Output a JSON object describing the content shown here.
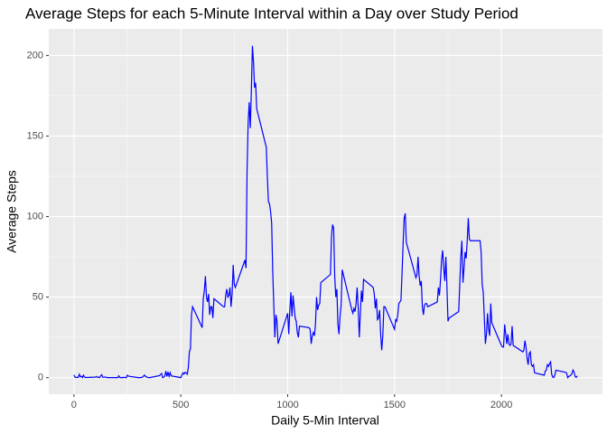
{
  "chart_data": {
    "type": "line",
    "title": "Average Steps for each 5-Minute Interval within a Day over Study Period",
    "x_label": "Daily 5-Min Interval",
    "y_label": "Average Steps",
    "x": [
      0,
      5,
      10,
      15,
      20,
      25,
      30,
      35,
      40,
      45,
      50,
      55,
      100,
      105,
      110,
      115,
      120,
      125,
      130,
      135,
      140,
      145,
      150,
      155,
      200,
      205,
      210,
      215,
      220,
      225,
      230,
      235,
      240,
      245,
      250,
      255,
      300,
      310,
      320,
      330,
      335,
      340,
      345,
      350,
      355,
      400,
      410,
      415,
      420,
      425,
      430,
      435,
      440,
      445,
      450,
      455,
      500,
      505,
      510,
      515,
      520,
      525,
      530,
      535,
      540,
      545,
      550,
      555,
      600,
      605,
      610,
      615,
      620,
      625,
      630,
      635,
      640,
      645,
      650,
      655,
      700,
      705,
      710,
      715,
      720,
      725,
      730,
      735,
      740,
      745,
      750,
      755,
      800,
      805,
      810,
      815,
      820,
      825,
      830,
      835,
      840,
      845,
      850,
      855,
      900,
      905,
      910,
      915,
      920,
      925,
      930,
      935,
      940,
      945,
      950,
      955,
      1000,
      1005,
      1010,
      1015,
      1020,
      1025,
      1030,
      1035,
      1040,
      1045,
      1050,
      1055,
      1100,
      1105,
      1110,
      1115,
      1120,
      1125,
      1130,
      1135,
      1140,
      1145,
      1150,
      1155,
      1200,
      1205,
      1210,
      1215,
      1220,
      1225,
      1230,
      1235,
      1240,
      1245,
      1250,
      1255,
      1300,
      1305,
      1310,
      1315,
      1320,
      1325,
      1330,
      1335,
      1340,
      1345,
      1350,
      1355,
      1400,
      1405,
      1410,
      1415,
      1420,
      1425,
      1430,
      1435,
      1440,
      1445,
      1450,
      1455,
      1500,
      1505,
      1510,
      1515,
      1520,
      1525,
      1530,
      1535,
      1540,
      1545,
      1550,
      1555,
      1600,
      1605,
      1610,
      1615,
      1620,
      1625,
      1630,
      1635,
      1640,
      1645,
      1650,
      1655,
      1700,
      1705,
      1710,
      1715,
      1720,
      1725,
      1730,
      1735,
      1740,
      1745,
      1750,
      1755,
      1800,
      1805,
      1810,
      1815,
      1820,
      1825,
      1830,
      1835,
      1840,
      1845,
      1850,
      1855,
      1900,
      1905,
      1910,
      1915,
      1920,
      1925,
      1930,
      1935,
      1940,
      1945,
      1950,
      1955,
      2000,
      2005,
      2010,
      2015,
      2020,
      2025,
      2030,
      2035,
      2040,
      2045,
      2050,
      2055,
      2100,
      2105,
      2110,
      2115,
      2120,
      2125,
      2130,
      2135,
      2140,
      2145,
      2150,
      2155,
      2200,
      2205,
      2210,
      2215,
      2220,
      2225,
      2230,
      2235,
      2240,
      2245,
      2250,
      2255,
      2300,
      2305,
      2310,
      2315,
      2320,
      2325,
      2330,
      2335,
      2340,
      2345,
      2350,
      2355
    ],
    "series": [
      {
        "color": "#0000ff",
        "values": [
          1.7,
          0.3,
          0.1,
          0.2,
          0.1,
          2.1,
          0.5,
          0.9,
          0,
          1.5,
          0.3,
          0.1,
          0.3,
          0.7,
          0.2,
          0.3,
          0,
          1.1,
          1.8,
          0.2,
          0.2,
          0.4,
          0.3,
          0,
          0,
          0,
          1.1,
          0,
          0,
          0.1,
          0,
          0.2,
          0,
          0,
          1.5,
          0.9,
          0,
          0,
          0.2,
          1.6,
          0.6,
          0.5,
          0.1,
          0,
          0,
          1.2,
          2.6,
          0,
          0.3,
          1.0,
          4.1,
          0.7,
          3.5,
          0.8,
          3.1,
          1.1,
          0,
          1.6,
          3.0,
          2.2,
          3.3,
          3.0,
          2.1,
          6.1,
          16,
          18,
          39,
          44,
          31,
          49,
          54,
          63,
          50,
          47,
          52,
          39,
          44,
          44,
          37,
          49,
          44,
          44,
          51,
          55,
          50,
          51,
          56,
          44,
          52,
          70,
          58,
          56,
          73,
          68,
          129,
          158,
          171,
          155,
          178,
          206,
          196,
          180,
          183,
          167,
          143,
          124,
          109,
          108,
          103,
          96,
          66,
          45,
          25,
          39,
          35,
          21,
          40,
          27,
          42,
          53,
          38,
          51,
          44,
          37,
          35,
          28,
          25,
          32,
          31,
          30,
          21,
          26,
          28,
          26,
          33,
          50,
          42,
          45,
          46,
          59,
          64,
          88,
          95,
          93,
          63,
          50,
          55,
          33,
          27,
          38,
          45,
          67,
          42,
          40,
          43,
          41,
          46,
          56,
          43,
          25,
          40,
          54,
          47,
          61,
          56,
          52,
          43,
          49,
          36,
          37,
          42,
          27,
          17,
          26,
          44,
          44,
          30,
          36,
          35,
          39,
          46,
          47,
          48,
          65,
          83,
          99,
          102,
          84,
          62,
          64,
          75,
          63,
          57,
          60,
          44,
          39,
          45,
          46,
          46,
          44,
          47,
          56,
          51,
          61,
          73,
          79,
          68,
          60,
          75,
          57,
          35,
          37,
          41,
          58,
          75,
          85,
          59,
          68,
          78,
          74,
          85,
          99,
          86,
          85,
          85,
          78,
          58,
          53,
          37,
          21,
          27,
          40,
          30,
          26,
          46,
          34,
          20,
          19,
          19,
          33,
          27,
          21,
          27,
          21,
          20,
          21,
          32,
          20,
          16,
          17,
          23,
          19,
          12,
          8,
          15,
          16,
          8,
          7,
          8,
          3,
          1.5,
          4,
          4.7,
          8,
          7,
          8.7,
          9.8,
          2.2,
          0.3,
          0.1,
          1.6,
          4.6,
          3.3,
          2.8,
          0,
          0.8,
          1,
          1.6,
          2.6,
          4.7,
          3.3,
          0.6,
          0.2,
          1.1
        ]
      }
    ],
    "xlim": [
      -117.75,
      2472.75
    ],
    "ylim": [
      -10.3,
      216.5
    ],
    "xticks": [
      0,
      500,
      1000,
      1500,
      2000
    ],
    "yticks": [
      0,
      50,
      100,
      150,
      200
    ],
    "grid": true
  }
}
